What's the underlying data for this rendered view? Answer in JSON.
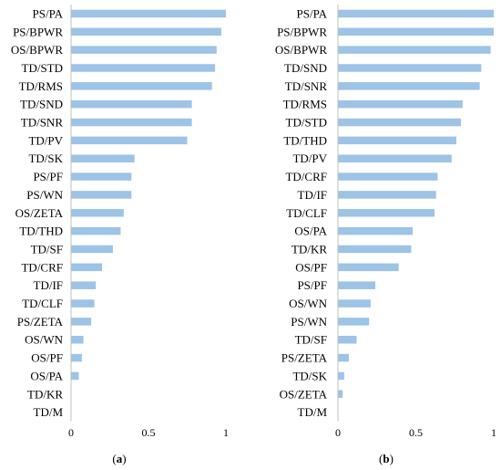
{
  "chart_data": [
    {
      "type": "bar",
      "orientation": "horizontal",
      "panel_label": "(a)",
      "categories": [
        "PS/PA",
        "PS/BPWR",
        "OS/BPWR",
        "TD/STD",
        "TD/RMS",
        "TD/SND",
        "TD/SNR",
        "TD/PV",
        "TD/SK",
        "PS/PF",
        "PS/WN",
        "OS/ZETA",
        "TD/THD",
        "TD/SF",
        "TD/CRF",
        "TD/IF",
        "TD/CLF",
        "PS/ZETA",
        "OS/WN",
        "OS/PF",
        "OS/PA",
        "TD/KR",
        "TD/M"
      ],
      "values": [
        1.0,
        0.97,
        0.94,
        0.93,
        0.91,
        0.78,
        0.78,
        0.75,
        0.41,
        0.39,
        0.39,
        0.34,
        0.32,
        0.27,
        0.2,
        0.16,
        0.15,
        0.13,
        0.08,
        0.07,
        0.05,
        0.0,
        0.0
      ],
      "xlim": [
        0,
        1
      ],
      "xticks": [
        "0",
        "0.5",
        "1"
      ],
      "grid": false,
      "color": "#9dc3e6"
    },
    {
      "type": "bar",
      "orientation": "horizontal",
      "panel_label": "(b)",
      "categories": [
        "PS/PA",
        "PS/BPWR",
        "OS/BPWR",
        "TD/SND",
        "TD/SNR",
        "TD/RMS",
        "TD/STD",
        "TD/THD",
        "TD/PV",
        "TD/CRF",
        "TD/IF",
        "TD/CLF",
        "OS/PA",
        "TD/KR",
        "OS/PF",
        "PS/PF",
        "OS/WN",
        "PS/WN",
        "TD/SF",
        "PS/ZETA",
        "TD/SK",
        "OS/ZETA",
        "TD/M"
      ],
      "values": [
        1.0,
        1.0,
        0.98,
        0.92,
        0.91,
        0.8,
        0.79,
        0.76,
        0.73,
        0.64,
        0.63,
        0.62,
        0.48,
        0.47,
        0.39,
        0.24,
        0.21,
        0.2,
        0.12,
        0.07,
        0.04,
        0.03,
        0.0
      ],
      "xlim": [
        0,
        1
      ],
      "xticks": [
        "0",
        "0.5",
        "1"
      ],
      "grid": false,
      "color": "#9dc3e6"
    }
  ]
}
